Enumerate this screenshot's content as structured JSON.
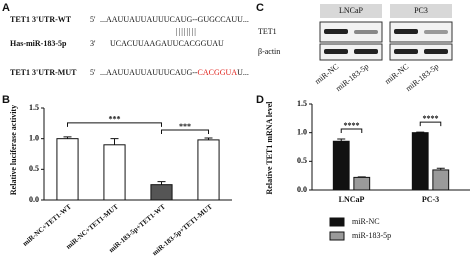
{
  "panel_labels": [
    "A",
    "B",
    "C",
    "D"
  ],
  "sequences": {
    "pairing": "||||||||",
    "rows": [
      {
        "label": "TET1 3'UTR-WT",
        "prime": "5'",
        "seq": "...AAUUAUUAUUUCAUG--GUGCCAUU..."
      },
      {
        "label": "Has-miR-183-5p",
        "prime": "3'",
        "seq": "UCACUUAAGAUUCACGGUAU"
      },
      {
        "label": "TET1 3'UTR-MUT",
        "prime": "5'",
        "seq": "...AAUUAUUAUUUCAUG--",
        "mutation": "CACGGUA",
        "seq_end": "U..."
      }
    ]
  },
  "blot": {
    "groups": [
      "LNCaP",
      "PC3"
    ],
    "proteins": [
      "TET1",
      "β-actin"
    ],
    "lanes": [
      "miR-NC",
      "miR-183-5p",
      "miR-NC",
      "miR-183-5p"
    ]
  },
  "chart_data": [
    {
      "type": "bar",
      "y_label": "Relative luciferase activity",
      "categories": [
        "miR-NC+TET1-WT",
        "miR-NC+TET1-MUT",
        "miR-183-5p+TET1-WT",
        "miR-183-5p+TET1-MUT"
      ],
      "values": [
        1.0,
        0.9,
        0.25,
        0.98
      ],
      "errors": [
        0.03,
        0.1,
        0.05,
        0.03
      ],
      "colors": [
        "#ffffff",
        "#ffffff",
        "#555555",
        "#ffffff"
      ],
      "significance": [
        "***",
        "***"
      ],
      "ylim": [
        0,
        1.5
      ],
      "yticks": [
        {
          "value": 0,
          "label": "0.0"
        },
        {
          "value": 0.5,
          "label": "0.5"
        },
        {
          "value": 1,
          "label": "1.0"
        },
        {
          "value": 1.5,
          "label": "1.5"
        }
      ]
    },
    {
      "type": "grouped_bar",
      "y_label": "Relative TET1 mRNA level",
      "categories": [
        "LNCaP",
        "PC-3"
      ],
      "series": [
        {
          "name": "miR-NC",
          "color": "#111111",
          "values": [
            0.85,
            1.0
          ],
          "errors": [
            0.04,
            0.01
          ]
        },
        {
          "name": "miR-183-5p",
          "color": "#9a9a9a",
          "values": [
            0.22,
            0.35
          ],
          "errors": [
            0.01,
            0.03
          ]
        }
      ],
      "significance": [
        "****",
        "****"
      ],
      "ylim": [
        0,
        1.5
      ],
      "yticks": [
        {
          "value": 0,
          "label": "0.0"
        },
        {
          "value": 0.5,
          "label": "0.5"
        },
        {
          "value": 1,
          "label": "1.0"
        },
        {
          "value": 1.5,
          "label": "1.5"
        }
      ]
    }
  ]
}
